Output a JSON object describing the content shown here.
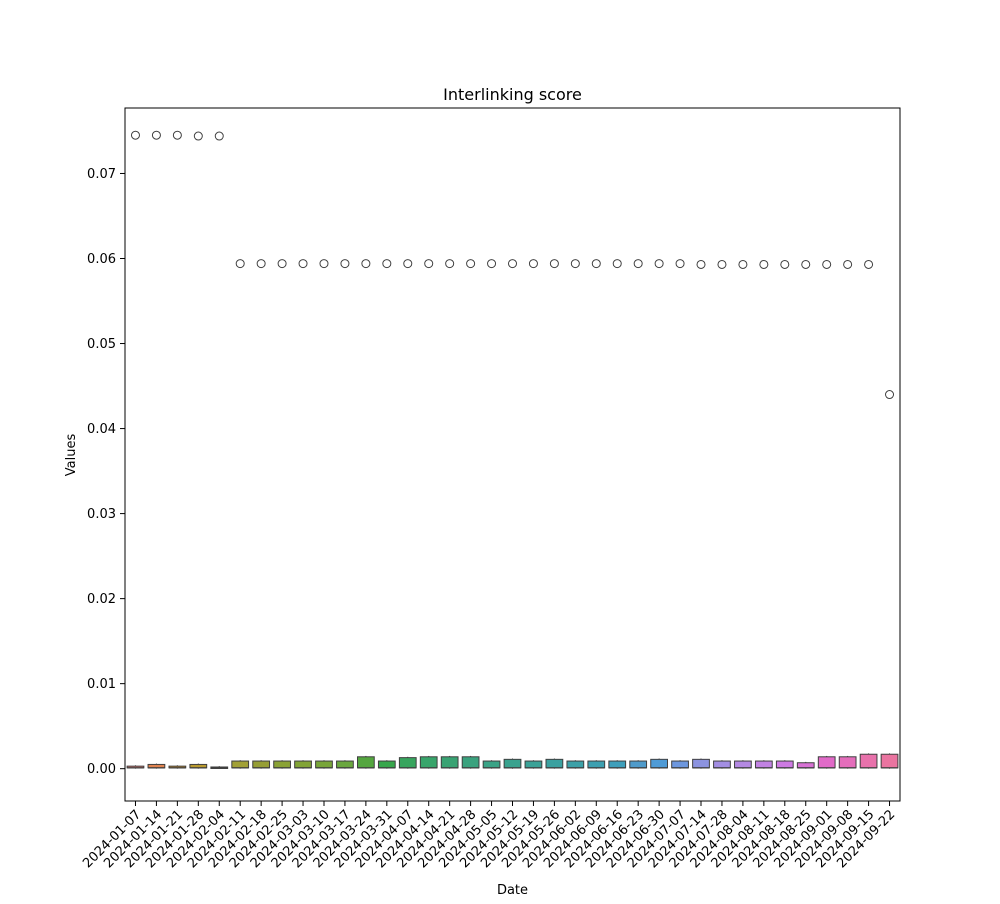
{
  "chart_data": {
    "type": "boxplot",
    "title": "Interlinking score",
    "xlabel": "Date",
    "ylabel": "Values",
    "ylim": [
      -0.0038,
      0.0777
    ],
    "yticks": [
      0.0,
      0.01,
      0.02,
      0.03,
      0.04,
      0.05,
      0.06,
      0.07
    ],
    "ytick_labels": [
      "0.00",
      "0.01",
      "0.02",
      "0.03",
      "0.04",
      "0.05",
      "0.06",
      "0.07"
    ],
    "grid": false,
    "legend": "none",
    "categories": [
      "2024-01-07",
      "2024-01-14",
      "2024-01-21",
      "2024-01-28",
      "2024-02-04",
      "2024-02-11",
      "2024-02-18",
      "2024-02-25",
      "2024-03-03",
      "2024-03-10",
      "2024-03-17",
      "2024-03-24",
      "2024-03-31",
      "2024-04-07",
      "2024-04-14",
      "2024-04-21",
      "2024-04-28",
      "2024-05-05",
      "2024-05-12",
      "2024-05-19",
      "2024-05-26",
      "2024-06-02",
      "2024-06-09",
      "2024-06-16",
      "2024-06-23",
      "2024-06-30",
      "2024-07-07",
      "2024-07-14",
      "2024-07-28",
      "2024-08-04",
      "2024-08-11",
      "2024-08-18",
      "2024-08-25",
      "2024-09-01",
      "2024-09-08",
      "2024-09-15",
      "2024-09-22"
    ],
    "box_q1": [
      0.0001,
      0.0001,
      0.0001,
      0.0001,
      0.0001,
      0.0001,
      0.0001,
      0.0001,
      0.0001,
      0.0001,
      0.0001,
      0.0001,
      0.0001,
      0.0001,
      0.0001,
      0.0001,
      0.0001,
      0.0001,
      0.0001,
      0.0001,
      0.0001,
      0.0001,
      0.0001,
      0.0001,
      0.0001,
      0.0001,
      0.0001,
      0.0001,
      0.0001,
      0.0001,
      0.0001,
      0.0001,
      0.0001,
      0.0001,
      0.0001,
      0.0001,
      0.0001
    ],
    "box_median": [
      0.0001,
      0.0001,
      0.0001,
      0.0001,
      0.0001,
      0.0001,
      0.0001,
      0.0001,
      0.0001,
      0.0001,
      0.0001,
      0.0001,
      0.0001,
      0.0001,
      0.0001,
      0.0001,
      0.0001,
      0.0001,
      0.0001,
      0.0001,
      0.0001,
      0.0001,
      0.0001,
      0.0001,
      0.0001,
      0.0001,
      0.0001,
      0.0001,
      0.0001,
      0.0001,
      0.0001,
      0.0001,
      0.0001,
      0.0001,
      0.0001,
      0.0001,
      0.0001
    ],
    "box_q3": [
      0.0003,
      0.0005,
      0.0003,
      0.0005,
      0.0002,
      0.0009,
      0.0009,
      0.0009,
      0.0009,
      0.0009,
      0.0009,
      0.0014,
      0.0009,
      0.0013,
      0.0014,
      0.0014,
      0.0014,
      0.0009,
      0.0011,
      0.0009,
      0.0011,
      0.0009,
      0.0009,
      0.0009,
      0.0009,
      0.0011,
      0.0009,
      0.0011,
      0.0009,
      0.0009,
      0.0009,
      0.0009,
      0.0007,
      0.0014,
      0.0014,
      0.0017,
      0.0017
    ],
    "whisker_low": [
      0.0,
      0.0,
      0.0,
      0.0,
      0.0,
      0.0,
      0.0,
      0.0,
      0.0,
      0.0,
      0.0,
      0.0,
      0.0,
      0.0,
      0.0,
      0.0,
      0.0,
      0.0,
      0.0,
      0.0,
      0.0,
      0.0,
      0.0,
      0.0,
      0.0,
      0.0,
      0.0,
      0.0,
      0.0,
      0.0,
      0.0,
      0.0,
      0.0,
      0.0,
      0.0,
      0.0,
      0.0
    ],
    "whisker_high": [
      0.0004,
      0.0006,
      0.0004,
      0.0006,
      0.0003,
      0.001,
      0.001,
      0.001,
      0.001,
      0.001,
      0.001,
      0.0015,
      0.001,
      0.0014,
      0.0015,
      0.0015,
      0.0015,
      0.001,
      0.0012,
      0.001,
      0.0012,
      0.001,
      0.001,
      0.001,
      0.001,
      0.0012,
      0.001,
      0.0012,
      0.001,
      0.001,
      0.001,
      0.001,
      0.0008,
      0.0015,
      0.0015,
      0.0018,
      0.0018
    ],
    "outliers": [
      [
        0.0745
      ],
      [
        0.0745
      ],
      [
        0.0745
      ],
      [
        0.0744
      ],
      [
        0.0744
      ],
      [
        0.0594
      ],
      [
        0.0594
      ],
      [
        0.0594
      ],
      [
        0.0594
      ],
      [
        0.0594
      ],
      [
        0.0594
      ],
      [
        0.0594
      ],
      [
        0.0594
      ],
      [
        0.0594
      ],
      [
        0.0594
      ],
      [
        0.0594
      ],
      [
        0.0594
      ],
      [
        0.0594
      ],
      [
        0.0594
      ],
      [
        0.0594
      ],
      [
        0.0594
      ],
      [
        0.0594
      ],
      [
        0.0594
      ],
      [
        0.0594
      ],
      [
        0.0594
      ],
      [
        0.0594
      ],
      [
        0.0594
      ],
      [
        0.0593
      ],
      [
        0.0593
      ],
      [
        0.0593
      ],
      [
        0.0593
      ],
      [
        0.0593
      ],
      [
        0.0593
      ],
      [
        0.0593
      ],
      [
        0.0593
      ],
      [
        0.0593
      ],
      [
        0.044
      ]
    ],
    "colors": [
      "#e8807a",
      "#e0834f",
      "#c98f2c",
      "#b99a2f",
      "#a99e35",
      "#a2a136",
      "#969e34",
      "#8aa235",
      "#82a436",
      "#78a539",
      "#6aa73e",
      "#54a63f",
      "#38a74c",
      "#37a55e",
      "#38a56b",
      "#39a373",
      "#3aa27e",
      "#39a386",
      "#39a28e",
      "#3aa297",
      "#3ba1a0",
      "#3ca1a8",
      "#3da0b1",
      "#3e9fbb",
      "#4f9bcb",
      "#4f9bd6",
      "#6d97de",
      "#8c93e0",
      "#a38ee3",
      "#b489e3",
      "#c182e3",
      "#cd7ae2",
      "#d872d5",
      "#e16ac8",
      "#e46dbb",
      "#e871ab",
      "#ea74a0"
    ]
  }
}
